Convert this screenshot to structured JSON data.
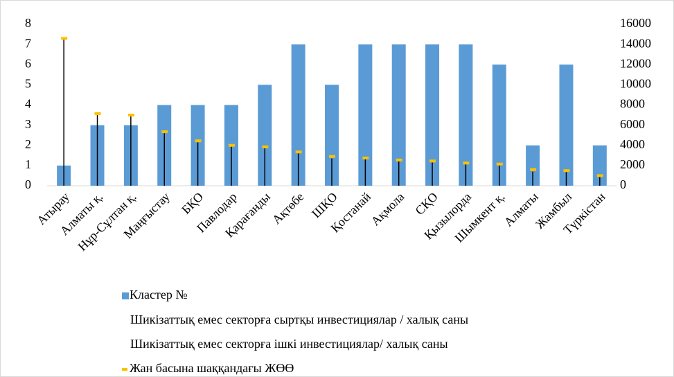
{
  "chart_data": {
    "type": "bar",
    "categories": [
      "Атырау",
      "Алматы қ.",
      "Нұр-Сұлтан қ.",
      "Маңғыстау",
      "БҚО",
      "Павлодар",
      "Қарағанды",
      "Ақтөбе",
      "ШҚО",
      "Қостанай",
      "Ақмола",
      "СҚО",
      "Қызылорда",
      "Шымкент қ.",
      "Алматы",
      "Жамбыл",
      "Түркістан"
    ],
    "series": [
      {
        "name": "Кластер №",
        "type": "bar",
        "axis": "y",
        "color": "#5b9bd5",
        "values": [
          1,
          3,
          3,
          4,
          4,
          4,
          5,
          7,
          5,
          7,
          7,
          7,
          7,
          6,
          2,
          6,
          2
        ]
      },
      {
        "name": "Шикізаттық емес секторға сыртқы инвестициялар / халық саны",
        "type": "hidden",
        "axis": "y2",
        "values": [
          0,
          0,
          0,
          0,
          0,
          0,
          0,
          0,
          0,
          0,
          0,
          0,
          0,
          0,
          0,
          0,
          0
        ]
      },
      {
        "name": "Шикізаттық емес секторға ішкі инвестициялар/ халық саны",
        "type": "hidden",
        "axis": "y2",
        "values": [
          14500,
          7000,
          6900,
          5200,
          4300,
          3900,
          3700,
          3200,
          2700,
          2600,
          2400,
          2300,
          2100,
          2000,
          1400,
          1350,
          900
        ]
      },
      {
        "name": "Жан басына шаққандағы ЖӨӨ",
        "type": "marker",
        "axis": "y2",
        "color": "#ffc000",
        "values": [
          14600,
          7150,
          7000,
          5350,
          4450,
          4000,
          3850,
          3350,
          2900,
          2750,
          2550,
          2450,
          2250,
          2150,
          1600,
          1500,
          1000
        ]
      }
    ],
    "high_low_lines": true,
    "ylim": [
      0,
      8
    ],
    "yticks": [
      0,
      1,
      2,
      3,
      4,
      5,
      6,
      7,
      8
    ],
    "y2lim": [
      0,
      16000
    ],
    "y2ticks": [
      0,
      2000,
      4000,
      6000,
      8000,
      10000,
      12000,
      14000,
      16000
    ]
  }
}
